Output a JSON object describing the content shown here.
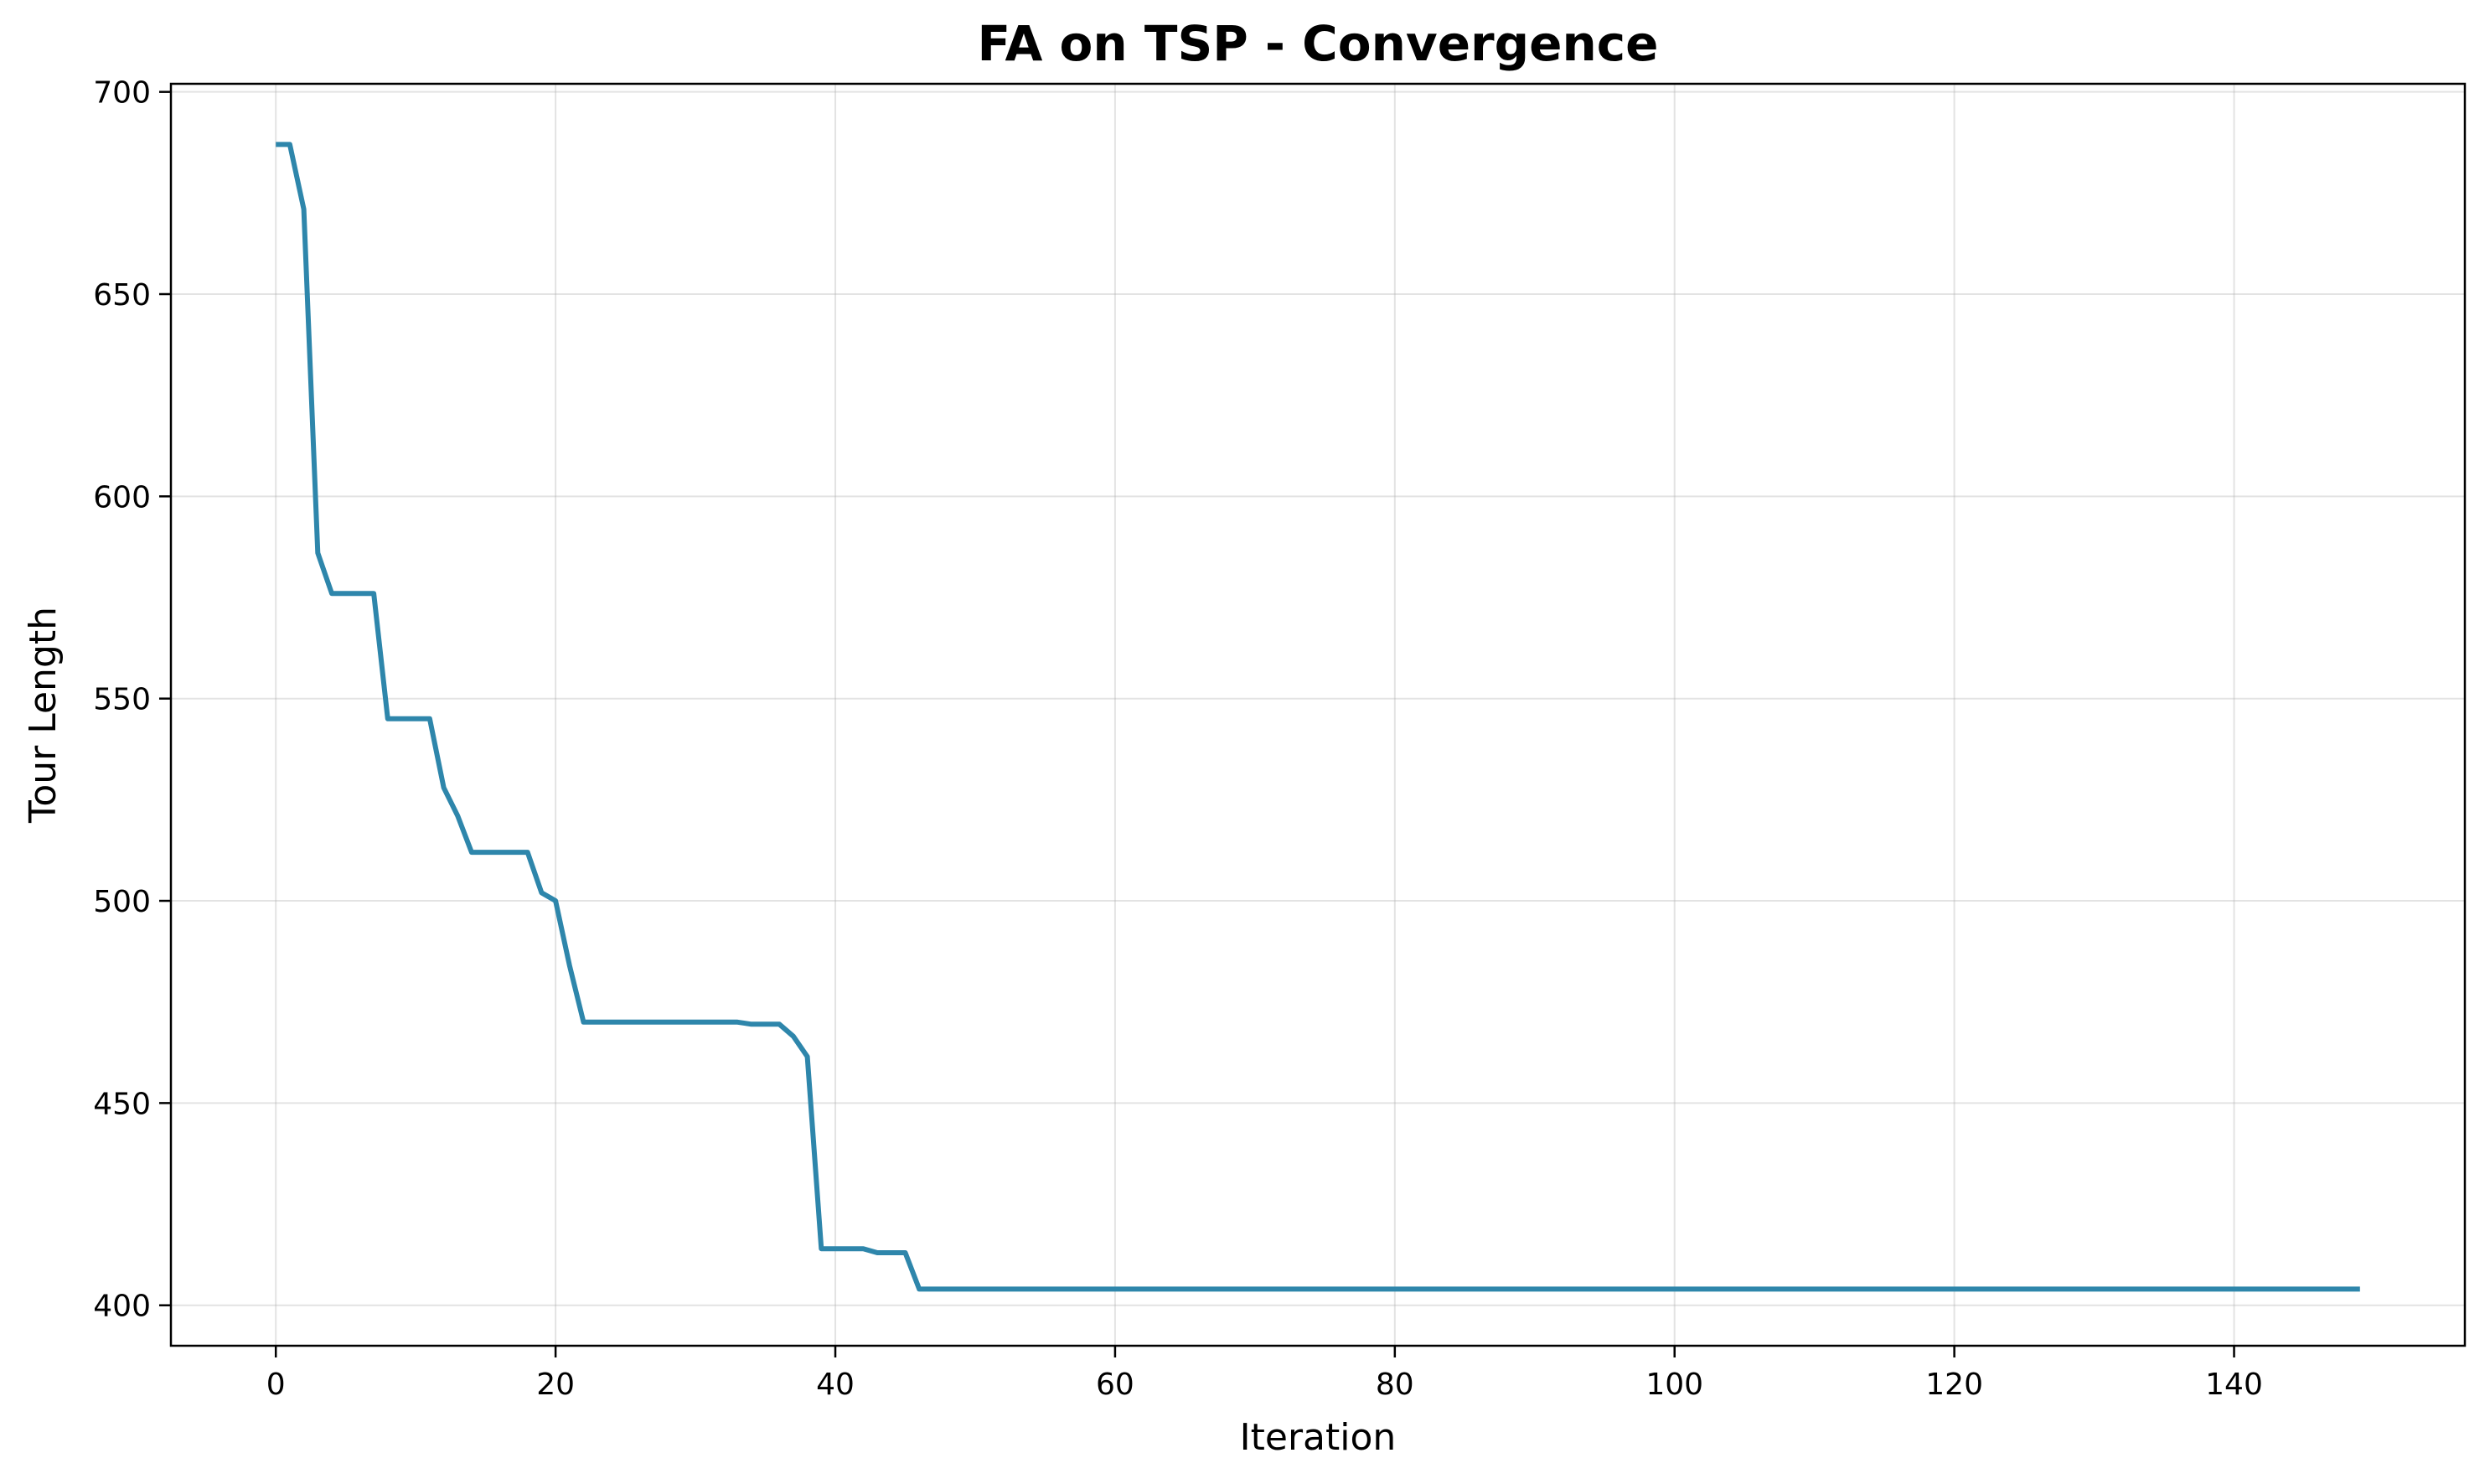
{
  "chart_data": {
    "type": "line",
    "title": "FA on TSP - Convergence",
    "xlabel": "Iteration",
    "ylabel": "Tour Length",
    "xlim": [
      -7.5,
      156.5
    ],
    "ylim": [
      390,
      702
    ],
    "xticks": [
      0,
      20,
      40,
      60,
      80,
      100,
      120,
      140
    ],
    "yticks": [
      400,
      450,
      500,
      550,
      600,
      650,
      700
    ],
    "grid": true,
    "line_color": "#2e86ab",
    "series": [
      {
        "x": [
          0,
          1,
          2,
          3,
          4,
          5,
          6,
          7,
          8,
          9,
          10,
          11,
          12,
          13,
          14,
          15,
          16,
          17,
          18,
          19,
          20,
          21,
          22,
          23,
          24,
          25,
          26,
          27,
          28,
          29,
          30,
          31,
          32,
          33,
          34,
          35,
          36,
          37,
          38,
          39,
          40,
          41,
          42,
          43,
          44,
          45,
          46,
          149
        ],
        "y": [
          687,
          687,
          671,
          586,
          576,
          576,
          576,
          576,
          545,
          545,
          545,
          545,
          528,
          521,
          512,
          512,
          512,
          512,
          512,
          502,
          500,
          484,
          470,
          470,
          470,
          470,
          470,
          470,
          470,
          470,
          470,
          470,
          470,
          470,
          469.5,
          469.5,
          469.5,
          466.5,
          461.5,
          414,
          414,
          414,
          414,
          413,
          413,
          413,
          404,
          404
        ]
      }
    ]
  }
}
